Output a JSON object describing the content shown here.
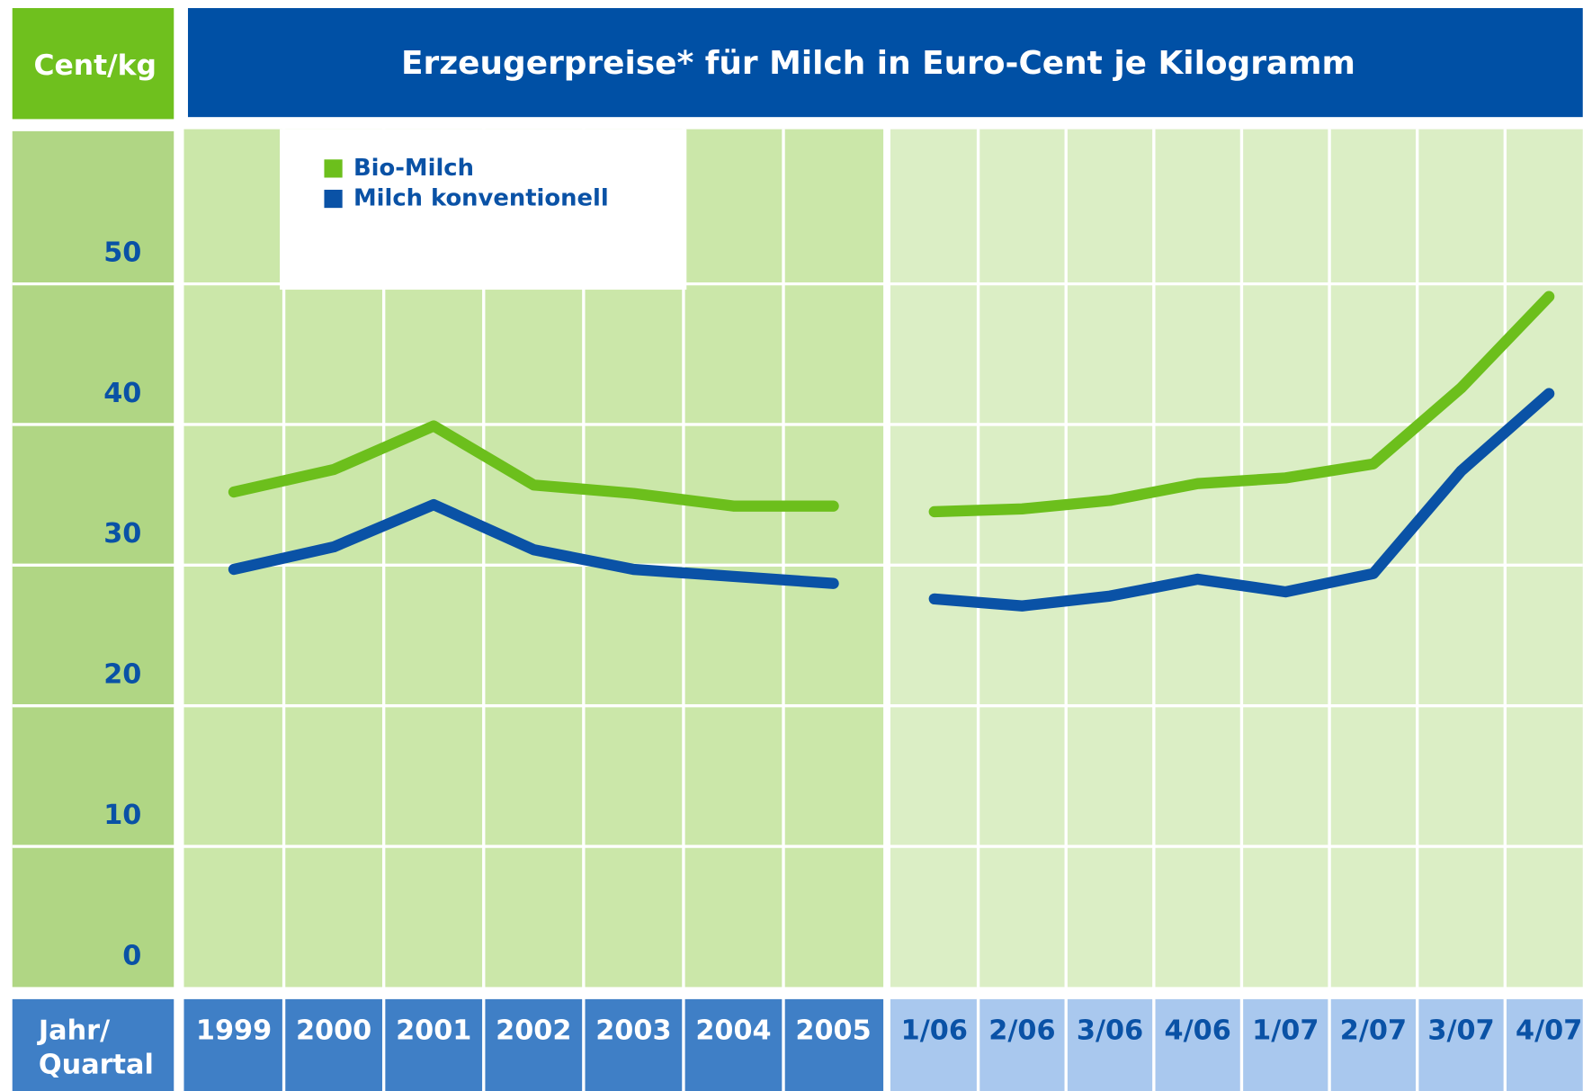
{
  "chart_data": {
    "type": "line",
    "title": "Erzeugerpreise* für Milch in Euro-Cent je Kilogramm",
    "y_label": "Cent/kg",
    "x_label": [
      "Jahr/",
      "Quartal"
    ],
    "categories": [
      "1999",
      "2000",
      "2001",
      "2002",
      "2003",
      "2004",
      "2005",
      "1/06",
      "2/06",
      "3/06",
      "4/06",
      "1/07",
      "2/07",
      "3/07",
      "4/07"
    ],
    "series": [
      {
        "name": "Bio-Milch",
        "color": "#6cbf1c",
        "values": [
          35.2,
          36.8,
          39.9,
          35.7,
          35.1,
          34.2,
          34.2,
          33.8,
          34.0,
          34.6,
          35.8,
          36.2,
          37.2,
          42.6,
          49.1
        ]
      },
      {
        "name": "Milch konventionell",
        "color": "#0a52a6",
        "values": [
          29.7,
          31.3,
          34.3,
          31.1,
          29.7,
          29.2,
          28.7,
          27.6,
          27.1,
          27.8,
          29.0,
          28.1,
          29.4,
          36.7,
          42.2
        ]
      }
    ],
    "ylim": [
      0,
      61
    ],
    "yticks": [
      0,
      10,
      20,
      30,
      40,
      50
    ],
    "grid": true,
    "legend": "upper left"
  }
}
